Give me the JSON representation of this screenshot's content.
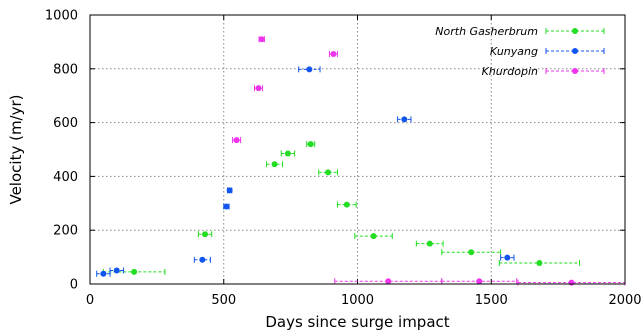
{
  "chart_data": {
    "type": "scatter",
    "xlabel": "Days since surge impact",
    "ylabel": "Velocity (m/yr)",
    "xlim": [
      0,
      2000
    ],
    "ylim": [
      0,
      1000
    ],
    "xticks": [
      "0",
      "500",
      "1000",
      "1500",
      "2000"
    ],
    "yticks": [
      "0",
      "200",
      "400",
      "600",
      "800",
      "1000"
    ],
    "grid": true,
    "error_bars": "horizontal",
    "legend_position": "top-right",
    "series": [
      {
        "name": "North Gasherbrum",
        "color": "#22dd22",
        "points": [
          {
            "x": 165,
            "y": 45,
            "xerr": 115
          },
          {
            "x": 430,
            "y": 185,
            "xerr": 25
          },
          {
            "x": 690,
            "y": 445,
            "xerr": 30
          },
          {
            "x": 740,
            "y": 485,
            "xerr": 25
          },
          {
            "x": 825,
            "y": 520,
            "xerr": 15
          },
          {
            "x": 890,
            "y": 415,
            "xerr": 35
          },
          {
            "x": 960,
            "y": 295,
            "xerr": 35
          },
          {
            "x": 1060,
            "y": 178,
            "xerr": 70
          },
          {
            "x": 1270,
            "y": 150,
            "xerr": 50
          },
          {
            "x": 1425,
            "y": 118,
            "xerr": 110
          },
          {
            "x": 1680,
            "y": 78,
            "xerr": 150
          }
        ]
      },
      {
        "name": "Kunyang",
        "color": "#1155ee",
        "points": [
          {
            "x": 50,
            "y": 38,
            "xerr": 25
          },
          {
            "x": 100,
            "y": 50,
            "xerr": 25
          },
          {
            "x": 420,
            "y": 90,
            "xerr": 30
          },
          {
            "x": 510,
            "y": 288,
            "xerr": 10
          },
          {
            "x": 522,
            "y": 348,
            "xerr": 8
          },
          {
            "x": 820,
            "y": 798,
            "xerr": 40
          },
          {
            "x": 1175,
            "y": 612,
            "xerr": 25
          },
          {
            "x": 1560,
            "y": 98,
            "xerr": 25
          }
        ]
      },
      {
        "name": "Khurdopin",
        "color": "#ee33ee",
        "points": [
          {
            "x": 548,
            "y": 535,
            "xerr": 15
          },
          {
            "x": 630,
            "y": 728,
            "xerr": 15
          },
          {
            "x": 642,
            "y": 910,
            "xerr": 10
          },
          {
            "x": 910,
            "y": 855,
            "xerr": 15
          },
          {
            "x": 1115,
            "y": 10,
            "xerr": 200
          },
          {
            "x": 1455,
            "y": 10,
            "xerr": 140
          },
          {
            "x": 1800,
            "y": 5,
            "xerr": 200
          }
        ]
      }
    ]
  }
}
